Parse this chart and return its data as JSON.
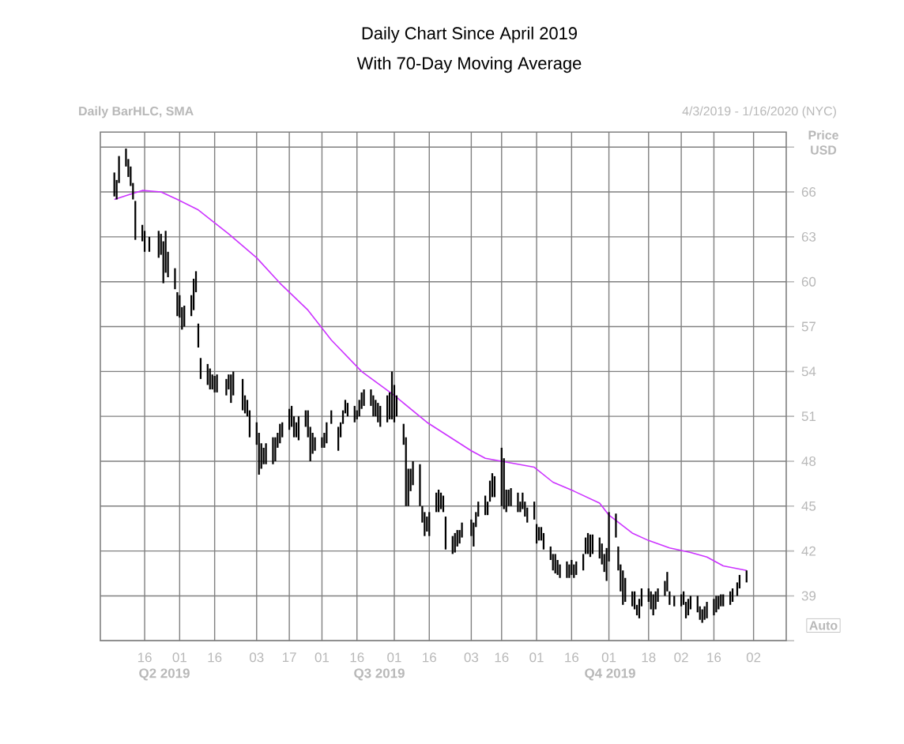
{
  "chart_data": {
    "type": "bar",
    "title": "Daily Chart Since April 2019",
    "subtitle": "With 70-Day Moving Average",
    "ylabel": "Price USD",
    "annotations": [
      "Daily BarHLC, SMA",
      "4/3/2019 - 1/16/2020 (NYC)",
      "Auto",
      "Q2 2019",
      "Q3 2019",
      "Q4 2019"
    ],
    "color": "#000000",
    "x": [
      "2019-04-03",
      "2019-04-04",
      "2019-04-05",
      "2019-04-08",
      "2019-04-09",
      "2019-04-10",
      "2019-04-11",
      "2019-04-12",
      "2019-04-15",
      "2019-04-16",
      "2019-04-18",
      "2019-04-22",
      "2019-04-23",
      "2019-04-24",
      "2019-04-25",
      "2019-04-26",
      "2019-04-29",
      "2019-04-30",
      "2019-05-01",
      "2019-05-02",
      "2019-05-03",
      "2019-05-06",
      "2019-05-07",
      "2019-05-08",
      "2019-05-09",
      "2019-05-10",
      "2019-05-13",
      "2019-05-14",
      "2019-05-15",
      "2019-05-16",
      "2019-05-17",
      "2019-05-21",
      "2019-05-22",
      "2019-05-23",
      "2019-05-24",
      "2019-05-28",
      "2019-05-29",
      "2019-05-30",
      "2019-05-31",
      "2019-06-03",
      "2019-06-04",
      "2019-06-05",
      "2019-06-06",
      "2019-06-07",
      "2019-06-10",
      "2019-06-11",
      "2019-06-12",
      "2019-06-13",
      "2019-06-14",
      "2019-06-17",
      "2019-06-18",
      "2019-06-19",
      "2019-06-20",
      "2019-06-21",
      "2019-06-24",
      "2019-06-25",
      "2019-06-26",
      "2019-06-27",
      "2019-06-28",
      "2019-07-01",
      "2019-07-02",
      "2019-07-03",
      "2019-07-05",
      "2019-07-08",
      "2019-07-09",
      "2019-07-10",
      "2019-07-11",
      "2019-07-12",
      "2019-07-15",
      "2019-07-16",
      "2019-07-17",
      "2019-07-18",
      "2019-07-19",
      "2019-07-22",
      "2019-07-23",
      "2019-07-24",
      "2019-07-25",
      "2019-07-26",
      "2019-07-29",
      "2019-07-30",
      "2019-07-31",
      "2019-08-01",
      "2019-08-02",
      "2019-08-05",
      "2019-08-06",
      "2019-08-07",
      "2019-08-08",
      "2019-08-09",
      "2019-08-12",
      "2019-08-13",
      "2019-08-14",
      "2019-08-15",
      "2019-08-16",
      "2019-08-19",
      "2019-08-20",
      "2019-08-21",
      "2019-08-22",
      "2019-08-23",
      "2019-08-26",
      "2019-08-27",
      "2019-08-28",
      "2019-08-29",
      "2019-08-30",
      "2019-09-03",
      "2019-09-04",
      "2019-09-05",
      "2019-09-06",
      "2019-09-09",
      "2019-09-10",
      "2019-09-11",
      "2019-09-12",
      "2019-09-13",
      "2019-09-16",
      "2019-09-17",
      "2019-09-18",
      "2019-09-19",
      "2019-09-20",
      "2019-09-23",
      "2019-09-24",
      "2019-09-25",
      "2019-09-26",
      "2019-09-27",
      "2019-09-30",
      "2019-10-01",
      "2019-10-02",
      "2019-10-03",
      "2019-10-04",
      "2019-10-07",
      "2019-10-08",
      "2019-10-09",
      "2019-10-10",
      "2019-10-11",
      "2019-10-14",
      "2019-10-15",
      "2019-10-16",
      "2019-10-17",
      "2019-10-18",
      "2019-10-21",
      "2019-10-22",
      "2019-10-23",
      "2019-10-24",
      "2019-10-25",
      "2019-10-28",
      "2019-10-29",
      "2019-10-30",
      "2019-10-31",
      "2019-11-01",
      "2019-11-04",
      "2019-11-05",
      "2019-11-06",
      "2019-11-07",
      "2019-11-08",
      "2019-11-11",
      "2019-11-12",
      "2019-11-13",
      "2019-11-14",
      "2019-11-15",
      "2019-11-18",
      "2019-11-19",
      "2019-11-20",
      "2019-11-21",
      "2019-11-22",
      "2019-11-25",
      "2019-11-26",
      "2019-11-27",
      "2019-11-29",
      "2019-12-02",
      "2019-12-03",
      "2019-12-04",
      "2019-12-05",
      "2019-12-06",
      "2019-12-09",
      "2019-12-10",
      "2019-12-11",
      "2019-12-12",
      "2019-12-13",
      "2019-12-16",
      "2019-12-17",
      "2019-12-18",
      "2019-12-19",
      "2019-12-20",
      "2019-12-23",
      "2019-12-24",
      "2019-12-26",
      "2019-12-27",
      "2019-12-30"
    ],
    "base": [
      65.7,
      65.5,
      66.6,
      67.7,
      67.0,
      66.4,
      65.5,
      62.8,
      62.7,
      62.0,
      62.0,
      61.6,
      61.8,
      59.9,
      60.6,
      60.3,
      59.5,
      57.7,
      57.6,
      56.8,
      57.0,
      57.7,
      58.1,
      59.3,
      55.6,
      53.5,
      53.1,
      52.8,
      52.8,
      52.6,
      52.6,
      52.4,
      52.8,
      51.9,
      52.4,
      51.4,
      51.2,
      51.0,
      49.6,
      49.1,
      47.1,
      47.5,
      47.8,
      47.8,
      47.8,
      48.0,
      48.9,
      49.2,
      49.6,
      50.1,
      50.3,
      49.6,
      49.6,
      49.4,
      50.3,
      49.6,
      48.0,
      48.5,
      48.7,
      48.9,
      48.9,
      49.2,
      50.5,
      48.7,
      49.6,
      50.5,
      51.2,
      51.0,
      50.6,
      50.8,
      51.0,
      51.5,
      51.7,
      51.7,
      51.0,
      51.0,
      50.6,
      50.3,
      50.6,
      50.8,
      50.8,
      50.6,
      51.0,
      49.1,
      45.0,
      45.0,
      46.0,
      46.4,
      45.0,
      43.9,
      43.0,
      43.3,
      43.0,
      44.6,
      44.6,
      44.8,
      44.6,
      42.1,
      41.8,
      41.9,
      42.3,
      42.5,
      42.9,
      43.0,
      42.3,
      43.6,
      44.3,
      44.4,
      44.4,
      45.3,
      45.6,
      45.6,
      45.0,
      44.8,
      44.6,
      45.0,
      45.0,
      44.6,
      44.6,
      44.8,
      44.3,
      43.9,
      44.1,
      42.5,
      42.7,
      42.7,
      42.1,
      41.4,
      40.7,
      40.5,
      40.4,
      40.2,
      40.2,
      40.2,
      40.4,
      40.2,
      40.4,
      40.7,
      41.8,
      41.8,
      41.6,
      41.8,
      41.5,
      41.1,
      40.6,
      40.0,
      41.3,
      42.9,
      40.7,
      39.3,
      38.4,
      38.6,
      38.3,
      38.1,
      37.7,
      37.5,
      38.3,
      38.6,
      38.1,
      37.7,
      38.1,
      38.6,
      39.0,
      39.3,
      38.4,
      38.3,
      38.3,
      38.4,
      37.5,
      37.7,
      38.1,
      37.9,
      37.4,
      37.2,
      37.4,
      37.5,
      37.7,
      37.9,
      38.1,
      38.3,
      38.3,
      38.4,
      38.6,
      39.0,
      39.5,
      39.9
    ],
    "values": [
      1.6,
      1.3,
      1.8,
      1.2,
      1.2,
      1.3,
      1.1,
      2.6,
      1.1,
      1.4,
      1.0,
      1.8,
      1.4,
      2.8,
      2.8,
      1.7,
      1.4,
      1.6,
      1.5,
      1.5,
      1.4,
      1.4,
      2.1,
      1.4,
      1.6,
      1.4,
      1.4,
      1.4,
      1.0,
      1.1,
      1.2,
      1.1,
      1.0,
      1.9,
      1.6,
      2.1,
      1.2,
      1.1,
      1.8,
      1.5,
      2.8,
      1.7,
      1.1,
      1.4,
      1.8,
      1.6,
      1.0,
      1.3,
      1.0,
      1.4,
      1.4,
      1.4,
      1.0,
      1.6,
      1.1,
      1.8,
      2.3,
      1.4,
      0.9,
      0.7,
      1.0,
      1.4,
      0.9,
      1.6,
      1.0,
      0.9,
      0.9,
      0.9,
      1.1,
      0.6,
      1.1,
      1.1,
      1.1,
      1.1,
      1.4,
      1.1,
      1.3,
      1.4,
      1.8,
      1.8,
      3.2,
      2.5,
      1.4,
      1.4,
      4.6,
      2.5,
      1.5,
      1.6,
      2.8,
      1.1,
      1.6,
      1.0,
      1.6,
      1.3,
      1.5,
      1.1,
      1.1,
      2.2,
      1.2,
      1.3,
      1.1,
      0.9,
      1.0,
      1.1,
      1.6,
      1.0,
      1.0,
      1.3,
      0.9,
      1.4,
      1.6,
      1.4,
      3.9,
      3.4,
      1.5,
      1.1,
      1.2,
      1.3,
      0.7,
      1.1,
      1.0,
      1.0,
      1.2,
      1.3,
      0.9,
      0.9,
      1.1,
      0.9,
      1.1,
      1.3,
      1.0,
      0.9,
      1.1,
      0.9,
      1.0,
      0.9,
      0.9,
      1.1,
      1.1,
      1.4,
      1.5,
      1.3,
      1.4,
      1.4,
      1.2,
      2.2,
      3.3,
      1.6,
      1.6,
      1.8,
      2.3,
      1.6,
      1.0,
      1.2,
      0.7,
      1.3,
      1.2,
      0.9,
      1.2,
      1.4,
      1.2,
      0.9,
      1.0,
      1.3,
      0.9,
      0.7,
      0.8,
      0.9,
      1.1,
      1.1,
      0.9,
      1.1,
      0.9,
      0.9,
      0.9,
      1.1,
      1.1,
      1.1,
      0.9,
      0.8,
      0.8,
      0.9,
      0.9,
      0.9,
      0.9,
      0.8
    ],
    "series": [
      {
        "type": "line",
        "color": "#cc33ff",
        "x": [
          "2019-04-03",
          "2019-04-09",
          "2019-04-15",
          "2019-04-23",
          "2019-04-30",
          "2019-05-09",
          "2019-05-22",
          "2019-06-03",
          "2019-06-13",
          "2019-06-25",
          "2019-07-05",
          "2019-07-18",
          "2019-08-01",
          "2019-08-15",
          "2019-08-20",
          "2019-09-03",
          "2019-09-09",
          "2019-09-16",
          "2019-09-30",
          "2019-10-08",
          "2019-10-17",
          "2019-10-28",
          "2019-11-01",
          "2019-11-11",
          "2019-11-18",
          "2019-11-27",
          "2019-12-06",
          "2019-12-13",
          "2019-12-20",
          "2019-12-30"
        ],
        "values": [
          65.5,
          65.8,
          66.1,
          66.0,
          65.5,
          64.8,
          63.2,
          61.6,
          59.9,
          58.1,
          56.1,
          54.0,
          52.4,
          50.6,
          50.1,
          48.7,
          48.2,
          48.0,
          47.6,
          46.6,
          46.0,
          45.2,
          44.4,
          43.2,
          42.7,
          42.2,
          41.9,
          41.6,
          41.0,
          40.7
        ]
      }
    ],
    "xlim": [
      "2019-03-28",
      "2020-01-16"
    ],
    "xticks": [
      {
        "value": "2019-04-16",
        "label": "16"
      },
      {
        "value": "2019-05-01",
        "label": "01"
      },
      {
        "value": "2019-05-16",
        "label": "16"
      },
      {
        "value": "2019-06-03",
        "label": "03"
      },
      {
        "value": "2019-06-17",
        "label": "17"
      },
      {
        "value": "2019-07-01",
        "label": "01"
      },
      {
        "value": "2019-07-16",
        "label": "16"
      },
      {
        "value": "2019-08-01",
        "label": "01"
      },
      {
        "value": "2019-08-16",
        "label": "16"
      },
      {
        "value": "2019-09-03",
        "label": "03"
      },
      {
        "value": "2019-09-16",
        "label": "16"
      },
      {
        "value": "2019-10-01",
        "label": "01"
      },
      {
        "value": "2019-10-16",
        "label": "16"
      },
      {
        "value": "2019-11-01",
        "label": "01"
      },
      {
        "value": "2019-11-18",
        "label": "18"
      },
      {
        "value": "2019-12-02",
        "label": "02"
      },
      {
        "value": "2019-12-16",
        "label": "16"
      },
      {
        "value": "2020-01-02",
        "label": "02"
      }
    ],
    "ylim": [
      36,
      70
    ],
    "yticks": [
      {
        "value": 36,
        "label": null
      },
      39,
      42,
      45,
      48,
      51,
      54,
      57,
      60,
      63,
      66,
      {
        "value": 69,
        "label": null
      }
    ],
    "grid": true
  }
}
